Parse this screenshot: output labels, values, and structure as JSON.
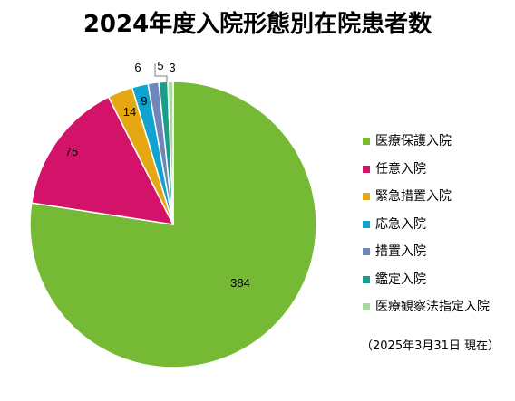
{
  "chart_data": {
    "type": "pie",
    "title": "2024年度入院形態別在院患者数",
    "categories": [
      "医療保護入院",
      "任意入院",
      "緊急措置入院",
      "応急入院",
      "措置入院",
      "鑑定入院",
      "医療観察法指定入院"
    ],
    "values": [
      384,
      75,
      14,
      9,
      6,
      5,
      3
    ],
    "colors": [
      "#76b935",
      "#d3126a",
      "#e6a714",
      "#10a3cf",
      "#6f86bd",
      "#1a9e8a",
      "#a6d99a"
    ],
    "legend_position": "right",
    "note": "（2025年3月31日 現在）"
  }
}
